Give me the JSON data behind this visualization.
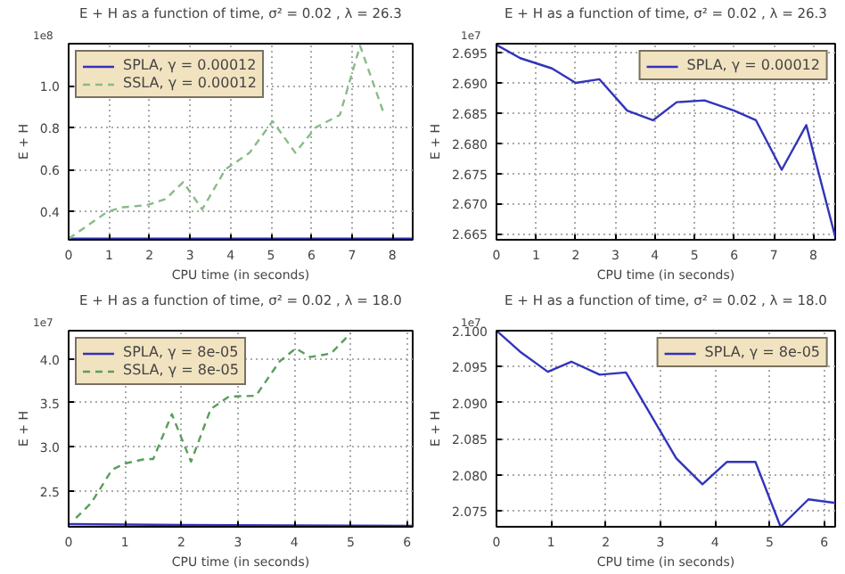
{
  "chart_data": [
    {
      "type": "line",
      "title": "E + H as a function of time, σ² = 0.02 , λ = 26.3",
      "xlabel": "CPU time (in seconds)",
      "ylabel": "E + H",
      "annotations": [
        "1e8"
      ],
      "xlim": [
        0,
        8.5
      ],
      "ylim": [
        0.265,
        1.2
      ],
      "xticks": [
        0,
        1,
        2,
        3,
        4,
        5,
        6,
        7,
        8
      ],
      "yticks": [
        0.4,
        0.6,
        0.8,
        {
          "value": 1,
          "label": "1.0"
        }
      ],
      "grid": true,
      "legend": "top left",
      "marker": "none",
      "series": [
        {
          "name": "SPLA, γ = 0.00012",
          "color": "#3333bb",
          "line_style": "solid",
          "x": [
            0,
            8.5
          ],
          "values": [
            0.27,
            0.27
          ]
        },
        {
          "name": "SSLA, γ = 0.00012",
          "color": "#88bb88",
          "line_style": "dashed",
          "x": [
            0,
            0.97,
            1.34,
            1.94,
            2.4,
            2.83,
            3.3,
            3.87,
            4.47,
            5.04,
            5.6,
            6.1,
            6.7,
            7.2,
            7.8
          ],
          "values": [
            0.27,
            0.4,
            0.42,
            0.43,
            0.46,
            0.54,
            0.41,
            0.6,
            0.68,
            0.83,
            0.68,
            0.8,
            0.86,
            1.19,
            0.86
          ]
        }
      ]
    },
    {
      "type": "line",
      "title": "E + H as a function of time, σ² = 0.02 , λ = 26.3",
      "xlabel": "CPU time (in seconds)",
      "ylabel": "E + H",
      "annotations": [
        "1e7"
      ],
      "xlim": [
        0,
        8.55
      ],
      "ylim": [
        2.664,
        2.6965
      ],
      "xticks": [
        0,
        1,
        2,
        3,
        4,
        5,
        6,
        7,
        8
      ],
      "yticks": [
        2.665,
        {
          "value": 2.67,
          "label": "2.670"
        },
        2.675,
        {
          "value": 2.68,
          "label": "2.680"
        },
        2.685,
        {
          "value": 2.69,
          "label": "2.690"
        },
        2.695
      ],
      "grid": true,
      "legend": "top right",
      "marker": "none",
      "series": [
        {
          "name": "SPLA, γ = 0.00012",
          "color": "#3333bb",
          "line_style": "solid",
          "x": [
            0,
            0.6,
            1.4,
            2.0,
            2.6,
            3.3,
            3.95,
            4.55,
            5.25,
            6.0,
            6.55,
            7.2,
            7.82,
            8.55
          ],
          "values": [
            2.6963,
            2.6941,
            2.6924,
            2.69,
            2.6906,
            2.6854,
            2.6838,
            2.6868,
            2.6871,
            2.6854,
            2.6838,
            2.6756,
            2.683,
            2.6645
          ]
        }
      ]
    },
    {
      "type": "line",
      "title": "E + H as a function of time, σ² = 0.02 , λ = 18.0",
      "xlabel": "CPU time (in seconds)",
      "ylabel": "E + H",
      "annotations": [
        "1e7"
      ],
      "xlim": [
        0,
        6.1
      ],
      "ylim": [
        2.09,
        4.32
      ],
      "xticks": [
        0,
        1,
        2,
        3,
        4,
        5,
        6
      ],
      "yticks": [
        2.5,
        {
          "value": 3,
          "label": "3.0"
        },
        3.5,
        {
          "value": 4,
          "label": "4.0"
        }
      ],
      "grid": true,
      "legend": "top left",
      "marker": "none",
      "series": [
        {
          "name": "SPLA, γ = 8e-05",
          "color": "#3333bb",
          "line_style": "solid",
          "x": [
            0,
            2,
            6.1
          ],
          "values": [
            2.12,
            2.11,
            2.1
          ]
        },
        {
          "name": "SSLA, γ = 8e-05",
          "color": "#5a9e5a",
          "line_style": "dashed",
          "x": [
            0.13,
            0.4,
            0.77,
            1.0,
            1.35,
            1.5,
            1.83,
            2.17,
            2.52,
            2.84,
            3.32,
            3.74,
            4.03,
            4.28,
            4.65,
            5.0
          ],
          "values": [
            2.19,
            2.36,
            2.74,
            2.81,
            2.86,
            2.86,
            3.37,
            2.83,
            3.43,
            3.57,
            3.58,
            3.97,
            4.12,
            4.02,
            4.06,
            4.29
          ]
        }
      ]
    },
    {
      "type": "line",
      "title": "E + H as a function of time, σ² = 0.02 , λ = 18.0",
      "xlabel": "CPU time (in seconds)",
      "ylabel": "E + H",
      "annotations": [
        "1e7"
      ],
      "xlim": [
        0,
        6.2
      ],
      "ylim": [
        2.0728,
        2.1
      ],
      "xticks": [
        0,
        1,
        2,
        3,
        4,
        5,
        6
      ],
      "yticks": [
        2.075,
        {
          "value": 2.08,
          "label": "2.080"
        },
        2.085,
        {
          "value": 2.09,
          "label": "2.090"
        },
        2.095,
        {
          "value": 2.1,
          "label": "2.100"
        }
      ],
      "grid": true,
      "legend": "top right",
      "marker": "none",
      "series": [
        {
          "name": "SPLA, γ = 8e-05",
          "color": "#3333bb",
          "line_style": "solid",
          "x": [
            0,
            0.43,
            0.94,
            1.37,
            1.89,
            2.37,
            3.29,
            3.77,
            4.22,
            4.74,
            5.2,
            5.71,
            6.2
          ],
          "values": [
            2.1,
            2.0971,
            2.0943,
            2.0957,
            2.0939,
            2.0942,
            2.0823,
            2.0787,
            2.0818,
            2.0818,
            2.0728,
            2.0766,
            2.0761
          ]
        }
      ]
    }
  ]
}
